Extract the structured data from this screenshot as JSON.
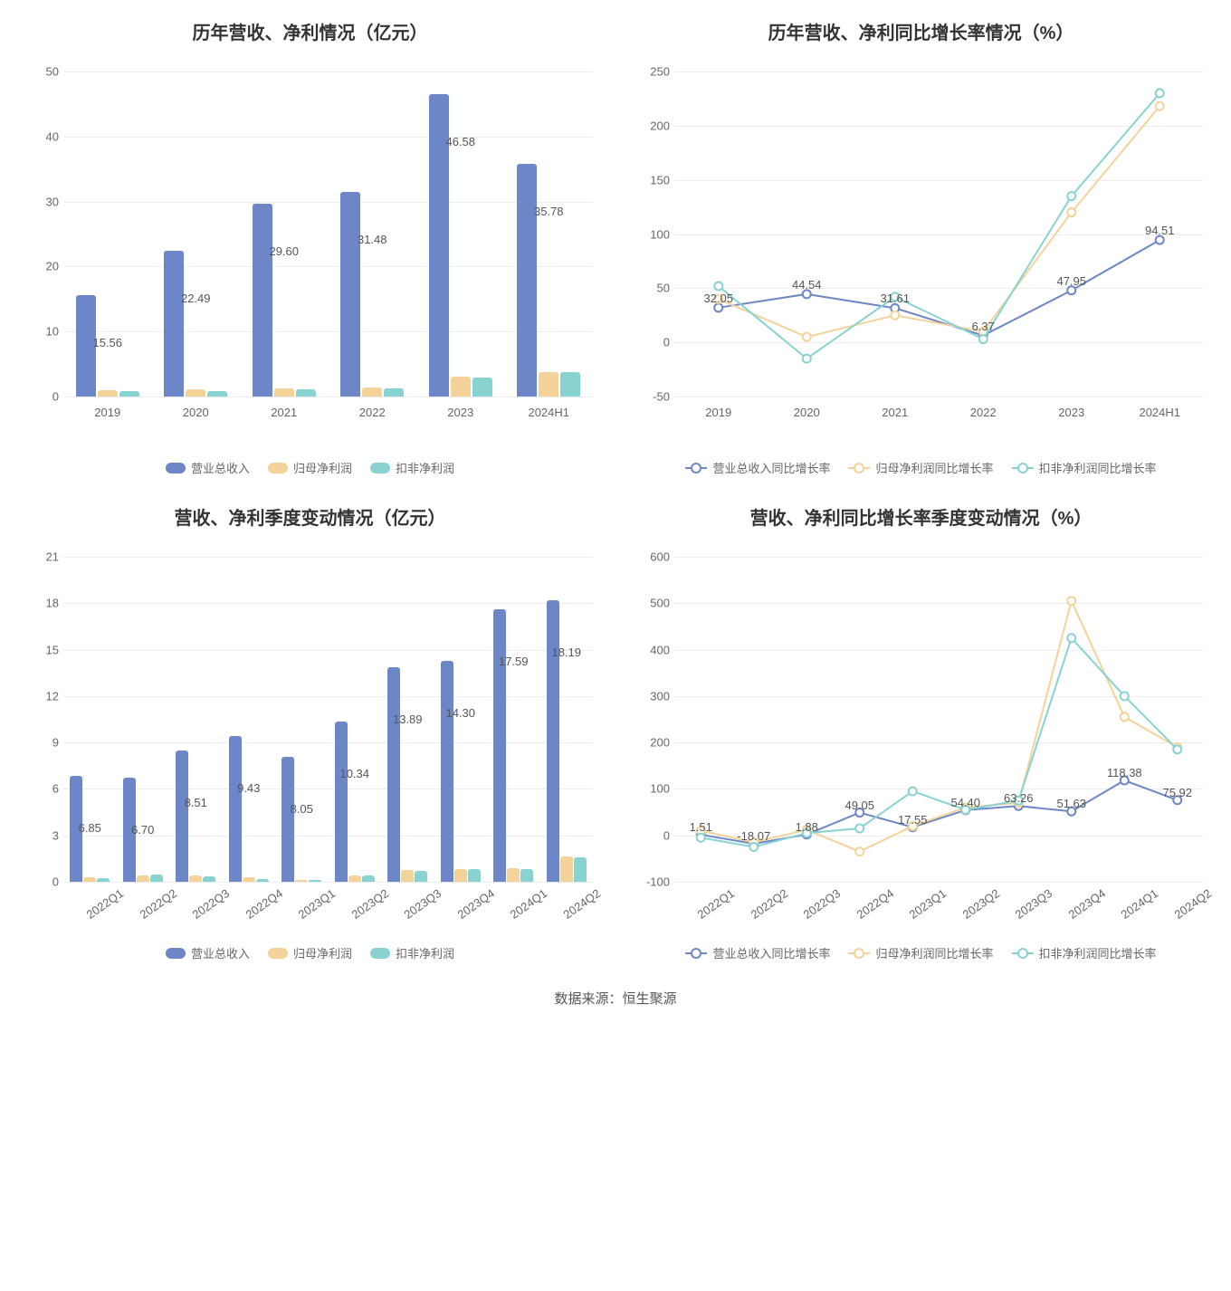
{
  "palette": {
    "blue": "#6d86c8",
    "yellow": "#f3d39a",
    "teal": "#88d3d1",
    "grid": "#eeeeee",
    "axis": "#cccccc",
    "text": "#555555"
  },
  "source_note": "数据来源：恒生聚源",
  "charts": {
    "c1": {
      "type": "bar",
      "title": "历年营收、净利情况（亿元）",
      "categories": [
        "2019",
        "2020",
        "2021",
        "2022",
        "2023",
        "2024H1"
      ],
      "ylim": [
        0,
        50
      ],
      "ytick_step": 10,
      "x_rotate": false,
      "bar_group_width": 0.72,
      "bar_gap": 0.02,
      "series": [
        {
          "name": "营业总收入",
          "color": "#6d86c8",
          "values": [
            15.56,
            22.49,
            29.6,
            31.48,
            46.58,
            35.78
          ]
        },
        {
          "name": "归母净利润",
          "color": "#f3d39a",
          "values": [
            1.0,
            1.1,
            1.3,
            1.4,
            3.0,
            3.8
          ]
        },
        {
          "name": "扣非净利润",
          "color": "#88d3d1",
          "values": [
            0.9,
            0.8,
            1.1,
            1.3,
            2.9,
            3.8
          ]
        }
      ],
      "data_labels": {
        "series_index": 0,
        "values": [
          "15.56",
          "22.49",
          "29.60",
          "31.48",
          "46.58",
          "35.78"
        ],
        "offset": -45
      }
    },
    "c2": {
      "type": "line",
      "title": "历年营收、净利同比增长率情况（%）",
      "categories": [
        "2019",
        "2020",
        "2021",
        "2022",
        "2023",
        "2024H1"
      ],
      "ylim": [
        -50,
        250
      ],
      "ytick_step": 50,
      "x_rotate": false,
      "series": [
        {
          "name": "营业总收入同比增长率",
          "color": "#6d86c8",
          "values": [
            32.05,
            44.54,
            31.61,
            6.37,
            47.95,
            94.51
          ]
        },
        {
          "name": "归母净利润同比增长率",
          "color": "#f3d39a",
          "values": [
            40,
            5,
            25,
            10,
            120,
            218
          ]
        },
        {
          "name": "扣非净利润同比增长率",
          "color": "#88d3d1",
          "values": [
            52,
            -15,
            42,
            3,
            135,
            230
          ]
        }
      ],
      "data_labels": {
        "series_index": 0,
        "values": [
          "32.05",
          "44.54",
          "31.61",
          "6.37",
          "47.95",
          "94.51"
        ],
        "offset": -18
      }
    },
    "c3": {
      "type": "bar",
      "title": "营收、净利季度变动情况（亿元）",
      "categories": [
        "2022Q1",
        "2022Q2",
        "2022Q3",
        "2022Q4",
        "2023Q1",
        "2023Q2",
        "2023Q3",
        "2023Q4",
        "2024Q1",
        "2024Q2"
      ],
      "ylim": [
        0,
        21
      ],
      "ytick_step": 3,
      "x_rotate": true,
      "bar_group_width": 0.75,
      "bar_gap": 0.015,
      "series": [
        {
          "name": "营业总收入",
          "color": "#6d86c8",
          "values": [
            6.85,
            6.7,
            8.51,
            9.43,
            8.05,
            10.34,
            13.89,
            14.3,
            17.59,
            18.19
          ]
        },
        {
          "name": "归母净利润",
          "color": "#f3d39a",
          "values": [
            0.3,
            0.4,
            0.4,
            0.3,
            0.1,
            0.4,
            0.75,
            0.8,
            0.85,
            1.65
          ]
        },
        {
          "name": "扣非净利润",
          "color": "#88d3d1",
          "values": [
            0.25,
            0.45,
            0.35,
            0.2,
            0.1,
            0.4,
            0.7,
            0.8,
            0.8,
            1.6
          ]
        }
      ],
      "data_labels": {
        "series_index": 0,
        "values": [
          "6.85",
          "6.70",
          "8.51",
          "9.43",
          "8.05",
          "10.34",
          "13.89",
          "14.30",
          "17.59",
          "18.19"
        ],
        "offset": -50
      }
    },
    "c4": {
      "type": "line",
      "title": "营收、净利同比增长率季度变动情况（%）",
      "categories": [
        "2022Q1",
        "2022Q2",
        "2022Q3",
        "2022Q4",
        "2023Q1",
        "2023Q2",
        "2023Q3",
        "2023Q4",
        "2024Q1",
        "2024Q2"
      ],
      "ylim": [
        -100,
        600
      ],
      "ytick_step": 100,
      "x_rotate": true,
      "series": [
        {
          "name": "营业总收入同比增长率",
          "color": "#6d86c8",
          "values": [
            1.51,
            -18.07,
            1.88,
            49.05,
            17.55,
            54.4,
            63.26,
            51.63,
            118.38,
            75.92
          ]
        },
        {
          "name": "归母净利润同比增长率",
          "color": "#f3d39a",
          "values": [
            10,
            -15,
            12,
            -35,
            20,
            60,
            70,
            505,
            255,
            190
          ]
        },
        {
          "name": "扣非净利润同比增长率",
          "color": "#88d3d1",
          "values": [
            -5,
            -25,
            5,
            15,
            95,
            55,
            75,
            425,
            300,
            185
          ]
        }
      ],
      "data_labels": {
        "series_index": 0,
        "values": [
          "1.51",
          "-18.07",
          "1.88",
          "49.05",
          "17.55",
          "54.40",
          "63.26",
          "51.63",
          "118.38",
          "75.92"
        ],
        "offset": -16
      }
    }
  }
}
